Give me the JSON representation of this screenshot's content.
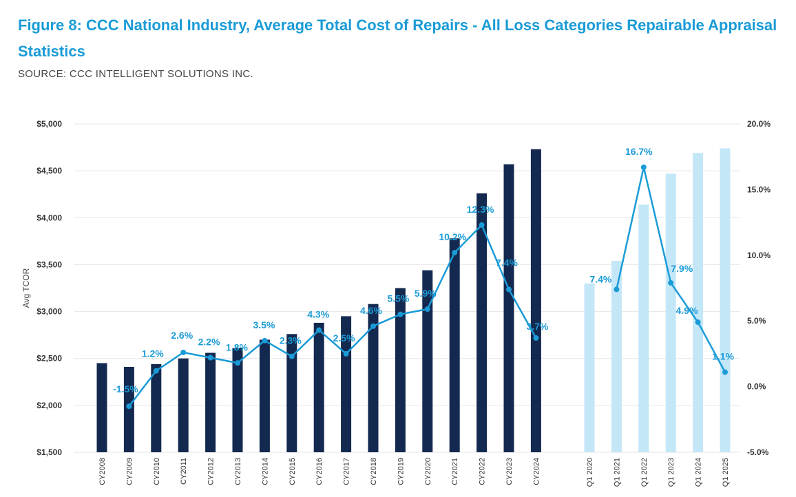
{
  "header": {
    "title": "Figure 8: CCC National Industry, Average Total Cost of Repairs - All Loss Categories Repairable Appraisal Statistics",
    "source": "SOURCE: CCC INTELLIGENT SOLUTIONS INC."
  },
  "colors": {
    "title": "#1a9bd7",
    "bar_annual": "#13294f",
    "bar_quarterly": "#c4e7f8",
    "line": "#1a9bd7",
    "grid": "#e6e6e6"
  },
  "chart_data": {
    "type": "bar",
    "combo": "bar+line (dual axis)",
    "ylabel": "Avg TCOR",
    "ylim": [
      1500,
      5000
    ],
    "yticks": [
      "$1,500",
      "$2,000",
      "$2,500",
      "$3,000",
      "$3,500",
      "$4,000",
      "$4,500",
      "$5,000"
    ],
    "y2lim": [
      -5.0,
      20.0
    ],
    "y2ticks": [
      "-5.0%",
      "0.0%",
      "5.0%",
      "10.0%",
      "15.0%",
      "20.0%"
    ],
    "grid": true,
    "groups": [
      {
        "name": "annual",
        "categories": [
          "CY2008",
          "CY2009",
          "CY2010",
          "CY2011",
          "CY2012",
          "CY2013",
          "CY2014",
          "CY2015",
          "CY2016",
          "CY2017",
          "CY2018",
          "CY2019",
          "CY2020",
          "CY2021",
          "CY2022",
          "CY2023",
          "CY2024"
        ],
        "bar_values": [
          2450,
          2410,
          2440,
          2500,
          2560,
          2610,
          2700,
          2760,
          2880,
          2950,
          3080,
          3250,
          3440,
          3780,
          4260,
          4570,
          4730
        ],
        "line_values": [
          null,
          -1.5,
          1.2,
          2.6,
          2.2,
          1.8,
          3.5,
          2.3,
          4.3,
          2.5,
          4.6,
          5.5,
          5.9,
          10.2,
          12.3,
          7.4,
          3.7
        ],
        "line_labels": [
          "",
          "-1.5%",
          "1.2%",
          "2.6%",
          "2.2%",
          "1.8%",
          "3.5%",
          "2.3%",
          "4.3%",
          "2.5%",
          "4.6%",
          "5.5%",
          "5.9%",
          "10.2%",
          "12.3%",
          "7.4%",
          "3.7%"
        ]
      },
      {
        "name": "quarterly",
        "categories": [
          "Q1 2020",
          "Q1 2021",
          "Q1 2022",
          "Q1 2023",
          "Q1 2024",
          "Q1 2025"
        ],
        "bar_values": [
          3300,
          3540,
          4140,
          4470,
          4690,
          4740
        ],
        "line_values": [
          null,
          7.4,
          16.7,
          7.9,
          4.9,
          1.1
        ],
        "line_labels": [
          "",
          "7.4%",
          "16.7%",
          "7.9%",
          "4.9%",
          "1.1%"
        ]
      }
    ]
  }
}
